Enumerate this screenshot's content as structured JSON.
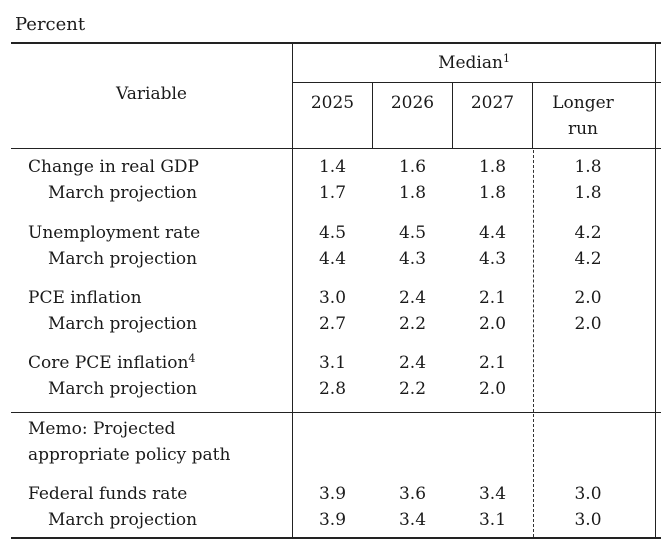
{
  "unit_label": "Percent",
  "header": {
    "variable": "Variable",
    "median": "Median",
    "median_note": "1",
    "years": [
      "2025",
      "2026",
      "2027"
    ],
    "longer_run_1": "Longer",
    "longer_run_2": "run"
  },
  "rows": [
    {
      "label": "Change in real GDP",
      "note": "",
      "values": [
        "1.4",
        "1.6",
        "1.8",
        "1.8"
      ]
    },
    {
      "label": "March projection",
      "note": "",
      "values": [
        "1.7",
        "1.8",
        "1.8",
        "1.8"
      ]
    },
    {
      "label": "Unemployment rate",
      "note": "",
      "values": [
        "4.5",
        "4.5",
        "4.4",
        "4.2"
      ]
    },
    {
      "label": "March projection",
      "note": "",
      "values": [
        "4.4",
        "4.3",
        "4.3",
        "4.2"
      ]
    },
    {
      "label": "PCE inflation",
      "note": "",
      "values": [
        "3.0",
        "2.4",
        "2.1",
        "2.0"
      ]
    },
    {
      "label": "March projection",
      "note": "",
      "values": [
        "2.7",
        "2.2",
        "2.0",
        "2.0"
      ]
    },
    {
      "label": "Core PCE inflation",
      "note": "4",
      "values": [
        "3.1",
        "2.4",
        "2.1",
        ""
      ]
    },
    {
      "label": "March projection",
      "note": "",
      "values": [
        "2.8",
        "2.2",
        "2.0",
        ""
      ]
    },
    {
      "label": "Federal funds rate",
      "note": "",
      "values": [
        "3.9",
        "3.6",
        "3.4",
        "3.0"
      ]
    },
    {
      "label": "March projection",
      "note": "",
      "values": [
        "3.9",
        "3.4",
        "3.1",
        "3.0"
      ]
    }
  ],
  "memo": {
    "line1": "Memo: Projected",
    "line2": "appropriate policy path"
  }
}
